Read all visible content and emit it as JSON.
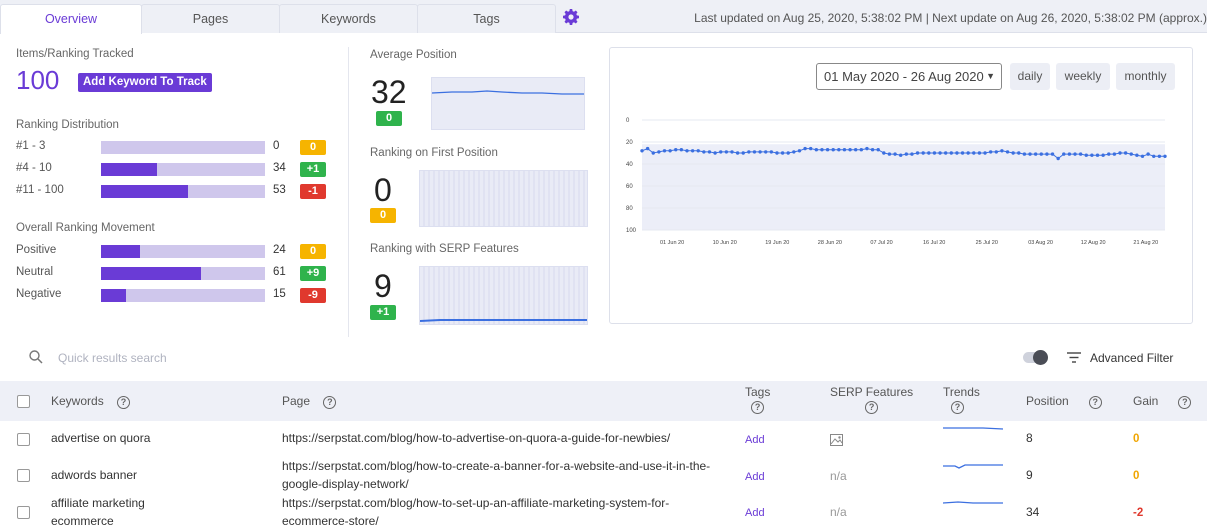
{
  "tabs": [
    {
      "label": "Overview",
      "active": true
    },
    {
      "label": "Pages",
      "active": false
    },
    {
      "label": "Keywords",
      "active": false
    },
    {
      "label": "Tags",
      "active": false
    }
  ],
  "settings_icon": "gear-icon",
  "update_info": "Last updated on Aug 25, 2020, 5:38:02 PM   |   Next update on Aug 26, 2020, 5:38:02 PM (approx.)",
  "tracked": {
    "label": "Items/Ranking Tracked",
    "value": "100",
    "add_button": "Add Keyword To Track"
  },
  "distribution": {
    "title": "Ranking Distribution",
    "rows": [
      {
        "label": "#1 - 3",
        "count": "0",
        "fraction": 0.0,
        "badge": "0",
        "badge_color": "#f6b400"
      },
      {
        "label": "#4 - 10",
        "count": "34",
        "fraction": 0.34,
        "badge": "+1",
        "badge_color": "#2fb34c"
      },
      {
        "label": "#11 - 100",
        "count": "53",
        "fraction": 0.53,
        "badge": "-1",
        "badge_color": "#e0392e"
      }
    ]
  },
  "movement": {
    "title": "Overall Ranking Movement",
    "rows": [
      {
        "label": "Positive",
        "count": "24",
        "fraction": 0.24,
        "badge": "0",
        "badge_color": "#f6b400"
      },
      {
        "label": "Neutral",
        "count": "61",
        "fraction": 0.61,
        "badge": "+9",
        "badge_color": "#2fb34c"
      },
      {
        "label": "Negative",
        "count": "15",
        "fraction": 0.15,
        "badge": "-9",
        "badge_color": "#e0392e"
      }
    ]
  },
  "metrics": [
    {
      "label": "Average Position",
      "value": "32",
      "badge": "0",
      "badge_color": "#2fb34c"
    },
    {
      "label": "Ranking on First Position",
      "value": "0",
      "badge": "0",
      "badge_color": "#f6b400"
    },
    {
      "label": "Ranking with SERP Features",
      "value": "9",
      "badge": "+1",
      "badge_color": "#2fb34c"
    }
  ],
  "chart_controls": {
    "date_range": "01 May 2020 - 26 Aug 2020",
    "daily": "daily",
    "weekly": "weekly",
    "monthly": "monthly"
  },
  "chart_data": {
    "type": "line",
    "ylim": [
      0,
      100
    ],
    "y_ticks": [
      "0",
      "20",
      "40",
      "60",
      "80",
      "100"
    ],
    "x_ticks": [
      "01 Jun 20",
      "10 Jun 20",
      "19 Jun 20",
      "28 Jun 20",
      "07 Jul 20",
      "16 Jul 20",
      "25 Jul 20",
      "03 Aug 20",
      "12 Aug 20",
      "21 Aug 20"
    ],
    "y_inverted": true,
    "series": [
      {
        "values": [
          28,
          26,
          30,
          29,
          28,
          28,
          27,
          27,
          28,
          28,
          28,
          29,
          29,
          30,
          29,
          29,
          29,
          30,
          30,
          29,
          29,
          29,
          29,
          29,
          30,
          30,
          30,
          29,
          28,
          26,
          26,
          27,
          27,
          27,
          27,
          27,
          27,
          27,
          27,
          27,
          26,
          27,
          27,
          30,
          31,
          31,
          32,
          31,
          31,
          30,
          30,
          30,
          30,
          30,
          30,
          30,
          30,
          30,
          30,
          30,
          30,
          30,
          29,
          29,
          28,
          29,
          30,
          30,
          31,
          31,
          31,
          31,
          31,
          31,
          35,
          31,
          31,
          31,
          31,
          32,
          32,
          32,
          32,
          31,
          31,
          30,
          30,
          31,
          32,
          33,
          31,
          33,
          33,
          33
        ]
      }
    ],
    "color": "#3b6fe0"
  },
  "search": {
    "placeholder": "Quick results search"
  },
  "advanced_filter": "Advanced Filter",
  "table": {
    "headers": {
      "keywords": "Keywords",
      "page": "Page",
      "tags": "Tags",
      "serp": "SERP Features",
      "trends": "Trends",
      "position": "Position",
      "gain": "Gain"
    },
    "rows": [
      {
        "keyword": "advertise on quora",
        "page": "https://serpstat.com/blog/how-to-advertise-on-quora-a-guide-for-newbies/",
        "tags": "Add",
        "serp": "image-icon",
        "position": "8",
        "gain": "0"
      },
      {
        "keyword": "adwords banner",
        "page": "https://serpstat.com/blog/how-to-create-a-banner-for-a-website-and-use-it-in-the-google-display-network/",
        "tags": "Add",
        "serp": "n/a",
        "position": "9",
        "gain": "0"
      },
      {
        "keyword": "affiliate marketing ecommerce",
        "page": "https://serpstat.com/blog/how-to-set-up-an-affiliate-marketing-system-for-ecommerce-store/",
        "tags": "Add",
        "serp": "n/a",
        "position": "34",
        "gain": "-2"
      }
    ]
  }
}
